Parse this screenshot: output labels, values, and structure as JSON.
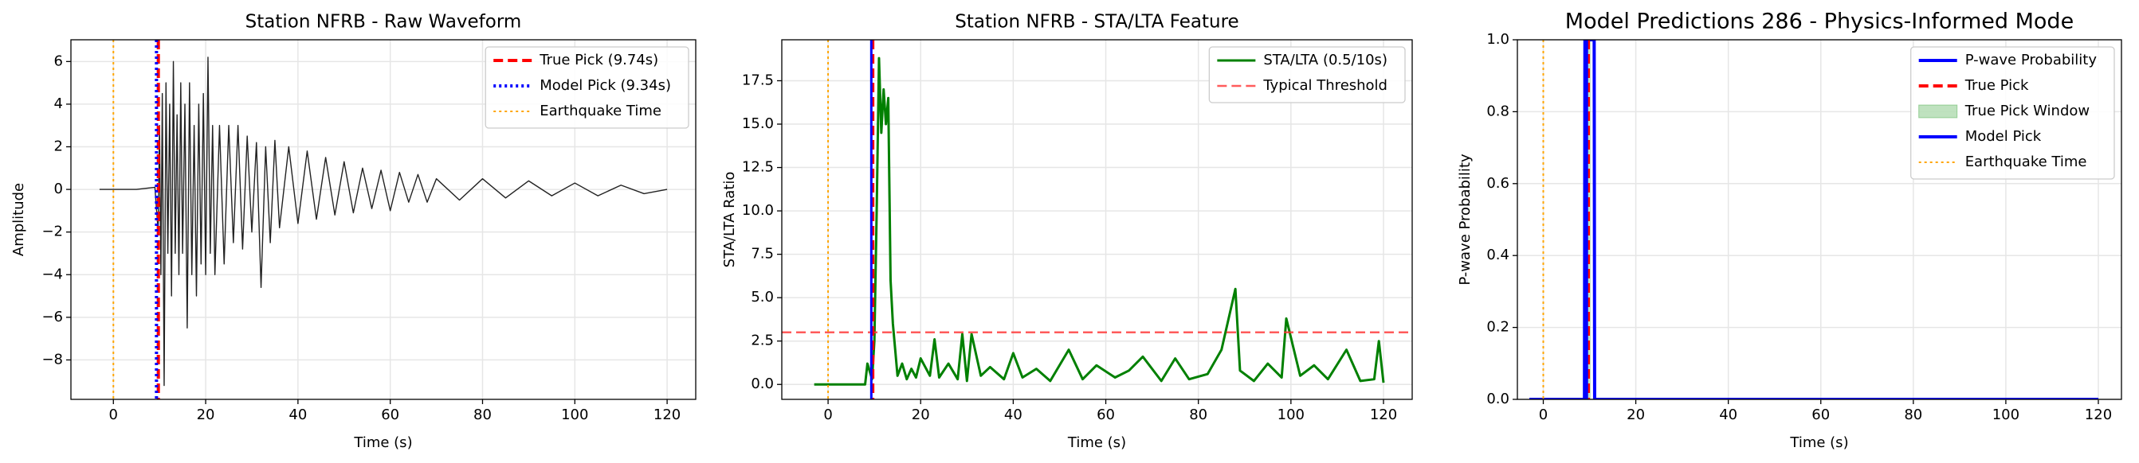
{
  "chart_data": [
    {
      "type": "line",
      "title": "Station NFRB - Raw Waveform",
      "xlabel": "Time (s)",
      "ylabel": "Amplitude",
      "xlim": [
        -9.2,
        126.2
      ],
      "ylim": [
        -9.85,
        7.02
      ],
      "grid": true,
      "legend": "upper right",
      "xticks": [
        0,
        20,
        40,
        60,
        80,
        100,
        120
      ],
      "yticks": [
        {
          "value": -8,
          "label": "−8"
        },
        {
          "value": -6,
          "label": "−6"
        },
        {
          "value": -4,
          "label": "−4"
        },
        {
          "value": -2,
          "label": "−2"
        },
        0,
        2,
        4,
        6
      ],
      "series": [
        {
          "color": "#222222",
          "width": 1.4,
          "x": [
            -3,
            0,
            5,
            9,
            9.7,
            10,
            10.3,
            10.6,
            11,
            11.4,
            11.8,
            12.2,
            12.6,
            13,
            13.4,
            13.8,
            14.2,
            14.6,
            15,
            15.5,
            16,
            16.5,
            17,
            17.5,
            18,
            18.5,
            19,
            19.5,
            20,
            20.5,
            21,
            21.5,
            22,
            23,
            24,
            25,
            26,
            27,
            28,
            29,
            30,
            31,
            32,
            33,
            34,
            35,
            36,
            38,
            40,
            42,
            44,
            46,
            48,
            50,
            52,
            54,
            56,
            58,
            60,
            62,
            64,
            66,
            68,
            70,
            75,
            80,
            85,
            90,
            95,
            100,
            105,
            110,
            115,
            120
          ],
          "values": [
            0,
            0,
            0,
            0.1,
            -2,
            3,
            -4,
            4.5,
            -9.2,
            5,
            -3,
            4,
            -5,
            6,
            -3,
            3.5,
            -4,
            5,
            -3,
            4,
            -6.5,
            5,
            -4,
            3,
            -5,
            4,
            -3.5,
            4.5,
            -4,
            6.2,
            -3,
            3,
            -4,
            3,
            -3.5,
            3,
            -2.5,
            3,
            -2.8,
            2.5,
            -2,
            2.2,
            -4.6,
            2,
            -2.5,
            2.3,
            -1.8,
            2,
            -1.6,
            1.8,
            -1.4,
            1.5,
            -1.2,
            1.3,
            -1.1,
            1,
            -0.9,
            0.9,
            -1,
            0.8,
            -0.6,
            0.7,
            -0.6,
            0.5,
            -0.5,
            0.5,
            -0.4,
            0.4,
            -0.3,
            0.3,
            -0.3,
            0.2,
            -0.2,
            0
          ]
        }
      ],
      "markers": [
        {
          "kind": "vline",
          "name": "True Pick (9.74s)",
          "x": 9.74,
          "color": "#ff0000",
          "dash": "dashed",
          "width": 4
        },
        {
          "kind": "vline",
          "name": "Model Pick (9.34s)",
          "x": 9.34,
          "color": "#0000ff",
          "dash": "dotted",
          "width": 4
        },
        {
          "kind": "vline",
          "name": "Earthquake Time",
          "x": 0,
          "color": "#ffa500",
          "dash": "dotted",
          "width": 2
        }
      ]
    },
    {
      "type": "line",
      "title": "Station NFRB - STA/LTA Feature",
      "xlabel": "Time (s)",
      "ylabel": "STA/LTA Ratio",
      "xlim": [
        -10,
        126.2
      ],
      "ylim": [
        -0.86,
        19.86
      ],
      "grid": true,
      "legend": "upper right",
      "xticks": [
        0,
        20,
        40,
        60,
        80,
        100,
        120
      ],
      "yticks": [
        {
          "value": 0,
          "label": "0.0"
        },
        2.5,
        {
          "value": 5,
          "label": "5.0"
        },
        7.5,
        {
          "value": 10,
          "label": "10.0"
        },
        12.5,
        {
          "value": 15,
          "label": "15.0"
        },
        17.5
      ],
      "series": [
        {
          "name": "STA/LTA (0.5/10s)",
          "color": "#008000",
          "width": 3,
          "x": [
            -3,
            8,
            8.5,
            9.5,
            10,
            10.5,
            11,
            11.5,
            12,
            12.5,
            13,
            13.5,
            14,
            14.5,
            15,
            16,
            17,
            18,
            19,
            20,
            22,
            23,
            24,
            26,
            28,
            29,
            30,
            31,
            33,
            35,
            38,
            40,
            42,
            45,
            48,
            52,
            55,
            58,
            62,
            65,
            68,
            72,
            75,
            78,
            82,
            85,
            88,
            89,
            92,
            95,
            98,
            99,
            102,
            105,
            108,
            112,
            115,
            118,
            119,
            120
          ],
          "values": [
            0,
            0,
            1.2,
            0.3,
            2.5,
            10,
            18.8,
            14.5,
            17,
            15,
            16.5,
            6,
            3.5,
            2,
            0.5,
            1.2,
            0.3,
            0.9,
            0.4,
            1.5,
            0.5,
            2.6,
            0.4,
            1.2,
            0.3,
            2.9,
            0.2,
            2.9,
            0.5,
            1.0,
            0.3,
            1.8,
            0.4,
            0.9,
            0.2,
            2.0,
            0.3,
            1.1,
            0.4,
            0.8,
            1.6,
            0.2,
            1.5,
            0.3,
            0.6,
            2.0,
            5.5,
            0.8,
            0.2,
            1.2,
            0.4,
            3.8,
            0.5,
            1.1,
            0.3,
            2.0,
            0.2,
            0.3,
            2.5,
            0.1
          ]
        }
      ],
      "markers": [
        {
          "kind": "hline",
          "name": "Typical Threshold",
          "y": 3,
          "color": "#ff3333",
          "dash": "dashed",
          "width": 2.5
        },
        {
          "kind": "vline",
          "x": 9.74,
          "color": "#ff0000",
          "dash": "dashed",
          "width": 3
        },
        {
          "kind": "vline",
          "x": 9.34,
          "color": "#0000ff",
          "dash": "solid",
          "width": 3
        },
        {
          "kind": "vline",
          "x": 0,
          "color": "#ffa500",
          "dash": "dotted",
          "width": 2
        }
      ]
    },
    {
      "type": "line",
      "title": "Model Predictions 286 - Physics-Informed Mode",
      "xlabel": "Time (s)",
      "ylabel": "P-wave Probability",
      "xlim": [
        -5.6,
        125
      ],
      "ylim": [
        0,
        1
      ],
      "grid": true,
      "legend": "upper right",
      "xticks": [
        0,
        20,
        40,
        60,
        80,
        100,
        120
      ],
      "yticks": [
        {
          "value": 0,
          "label": "0.0"
        },
        0.2,
        0.4,
        0.6,
        0.8,
        {
          "value": 1,
          "label": "1.0"
        }
      ],
      "series": [
        {
          "name": "P-wave Probability",
          "color": "#0000ff",
          "width": 4,
          "x": [
            -3,
            8.9,
            9.0,
            11.0,
            11.1,
            120
          ],
          "values": [
            0,
            0,
            1,
            1,
            0,
            0
          ]
        }
      ],
      "markers": [
        {
          "kind": "vline",
          "name": "True Pick",
          "x": 9.74,
          "color": "#ff0000",
          "dash": "dashed",
          "width": 4
        },
        {
          "kind": "span",
          "name": "True Pick Window",
          "x": [
            9.24,
            10.24
          ],
          "color": "#2ca02c"
        },
        {
          "kind": "vline",
          "name": "Model Pick",
          "x": 9.34,
          "color": "#0000ff",
          "dash": "solid",
          "width": 4
        },
        {
          "kind": "vline",
          "name": "Earthquake Time",
          "x": 0,
          "color": "#ffa500",
          "dash": "dotted",
          "width": 2
        }
      ]
    }
  ]
}
